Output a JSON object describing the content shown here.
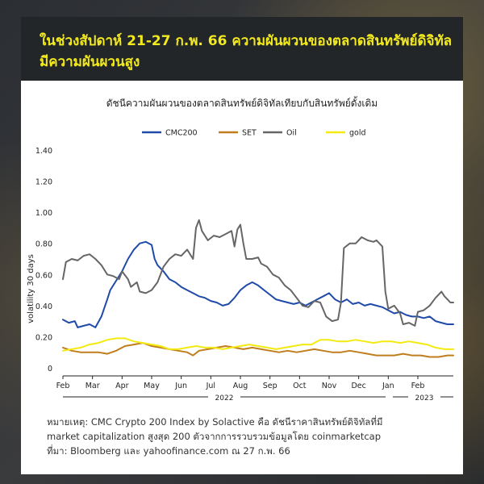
{
  "header": {
    "title_line1": "ในช่วงสัปดาห์ 21-27 ก.พ. 66 ความผันผวนของตลาดสินทรัพย์ดิจิทัล",
    "title_line2": "มีความผันผวนสูง"
  },
  "notes": {
    "line1": "หมายเหตุ: CMC Crypto 200 Index by Solactive คือ ดัชนีราคาสินทรัพย์ดิจิทัลที่มี",
    "line2": "market capitalization สูงสุด 200 ตัวจากการรวบรวมข้อมูลโดย coinmarketcap",
    "line3": "ที่มา: Bloomberg และ yahoofinance.com ณ 27 ก.พ. 66"
  },
  "chart_data": {
    "type": "line",
    "title": "ดัชนีความผันผวนของตลาดสินทรัพย์ดิจิทัลเทียบกับสินทรัพย์ดั้งเดิม",
    "ylabel": "volatility 30 days",
    "xlabel": "",
    "ylim": [
      0,
      1.4
    ],
    "xlim": [
      0,
      13.2
    ],
    "y_ticks": [
      "0",
      "0.20",
      "0.40",
      "0.60",
      "0.80",
      "1.00",
      "1.20",
      "1.40"
    ],
    "x_ticks": [
      "Feb",
      "Mar",
      "Apr",
      "May",
      "Jun",
      "Jul",
      "Aug",
      "Sep",
      "Oct",
      "Nov",
      "Dec",
      "Jan",
      "Feb"
    ],
    "year_labels": [
      "2022",
      "2023"
    ],
    "grid": false,
    "legend_position": "top",
    "series": [
      {
        "name": "CMC200",
        "color": "#1f4aa8",
        "points": [
          [
            0,
            0.31
          ],
          [
            0.2,
            0.29
          ],
          [
            0.4,
            0.3
          ],
          [
            0.5,
            0.26
          ],
          [
            0.7,
            0.27
          ],
          [
            0.9,
            0.28
          ],
          [
            1.1,
            0.26
          ],
          [
            1.3,
            0.33
          ],
          [
            1.5,
            0.44
          ],
          [
            1.6,
            0.5
          ],
          [
            1.8,
            0.56
          ],
          [
            2.0,
            0.62
          ],
          [
            2.2,
            0.7
          ],
          [
            2.4,
            0.76
          ],
          [
            2.6,
            0.8
          ],
          [
            2.8,
            0.81
          ],
          [
            3.0,
            0.79
          ],
          [
            3.1,
            0.7
          ],
          [
            3.2,
            0.66
          ],
          [
            3.4,
            0.62
          ],
          [
            3.6,
            0.57
          ],
          [
            3.8,
            0.55
          ],
          [
            4.0,
            0.52
          ],
          [
            4.2,
            0.5
          ],
          [
            4.4,
            0.48
          ],
          [
            4.6,
            0.46
          ],
          [
            4.8,
            0.45
          ],
          [
            5.0,
            0.43
          ],
          [
            5.2,
            0.42
          ],
          [
            5.4,
            0.4
          ],
          [
            5.6,
            0.41
          ],
          [
            5.8,
            0.45
          ],
          [
            6.0,
            0.5
          ],
          [
            6.2,
            0.53
          ],
          [
            6.4,
            0.55
          ],
          [
            6.6,
            0.53
          ],
          [
            6.8,
            0.5
          ],
          [
            7.0,
            0.47
          ],
          [
            7.2,
            0.44
          ],
          [
            7.4,
            0.43
          ],
          [
            7.6,
            0.42
          ],
          [
            7.8,
            0.41
          ],
          [
            8.0,
            0.42
          ],
          [
            8.2,
            0.4
          ],
          [
            8.4,
            0.42
          ],
          [
            8.6,
            0.44
          ],
          [
            8.8,
            0.46
          ],
          [
            9.0,
            0.48
          ],
          [
            9.2,
            0.44
          ],
          [
            9.4,
            0.42
          ],
          [
            9.6,
            0.44
          ],
          [
            9.8,
            0.41
          ],
          [
            10.0,
            0.42
          ],
          [
            10.2,
            0.4
          ],
          [
            10.4,
            0.41
          ],
          [
            10.6,
            0.4
          ],
          [
            10.8,
            0.39
          ],
          [
            11.0,
            0.37
          ],
          [
            11.2,
            0.35
          ],
          [
            11.4,
            0.36
          ],
          [
            11.6,
            0.34
          ],
          [
            11.8,
            0.33
          ],
          [
            12.0,
            0.33
          ],
          [
            12.2,
            0.32
          ],
          [
            12.4,
            0.33
          ],
          [
            12.6,
            0.3
          ],
          [
            12.8,
            0.29
          ],
          [
            13.0,
            0.28
          ],
          [
            13.2,
            0.28
          ]
        ]
      },
      {
        "name": "SET",
        "color": "#c07d1e",
        "points": [
          [
            0,
            0.13
          ],
          [
            0.3,
            0.11
          ],
          [
            0.6,
            0.1
          ],
          [
            0.9,
            0.1
          ],
          [
            1.2,
            0.1
          ],
          [
            1.5,
            0.09
          ],
          [
            1.8,
            0.11
          ],
          [
            2.1,
            0.14
          ],
          [
            2.4,
            0.15
          ],
          [
            2.7,
            0.16
          ],
          [
            3.0,
            0.14
          ],
          [
            3.3,
            0.13
          ],
          [
            3.6,
            0.12
          ],
          [
            3.9,
            0.11
          ],
          [
            4.2,
            0.1
          ],
          [
            4.4,
            0.08
          ],
          [
            4.6,
            0.11
          ],
          [
            4.9,
            0.12
          ],
          [
            5.2,
            0.13
          ],
          [
            5.5,
            0.14
          ],
          [
            5.8,
            0.13
          ],
          [
            6.1,
            0.12
          ],
          [
            6.4,
            0.13
          ],
          [
            6.7,
            0.12
          ],
          [
            7.0,
            0.11
          ],
          [
            7.3,
            0.1
          ],
          [
            7.6,
            0.11
          ],
          [
            7.9,
            0.1
          ],
          [
            8.2,
            0.11
          ],
          [
            8.5,
            0.12
          ],
          [
            8.8,
            0.11
          ],
          [
            9.1,
            0.1
          ],
          [
            9.4,
            0.1
          ],
          [
            9.7,
            0.11
          ],
          [
            10.0,
            0.1
          ],
          [
            10.3,
            0.09
          ],
          [
            10.6,
            0.08
          ],
          [
            10.9,
            0.08
          ],
          [
            11.2,
            0.08
          ],
          [
            11.5,
            0.09
          ],
          [
            11.8,
            0.08
          ],
          [
            12.1,
            0.08
          ],
          [
            12.4,
            0.07
          ],
          [
            12.7,
            0.07
          ],
          [
            13.0,
            0.08
          ],
          [
            13.2,
            0.08
          ]
        ]
      },
      {
        "name": "Oil",
        "color": "#666666",
        "points": [
          [
            0,
            0.57
          ],
          [
            0.1,
            0.68
          ],
          [
            0.3,
            0.7
          ],
          [
            0.5,
            0.69
          ],
          [
            0.7,
            0.72
          ],
          [
            0.9,
            0.73
          ],
          [
            1.1,
            0.7
          ],
          [
            1.3,
            0.66
          ],
          [
            1.5,
            0.6
          ],
          [
            1.7,
            0.59
          ],
          [
            1.9,
            0.57
          ],
          [
            2.0,
            0.62
          ],
          [
            2.2,
            0.57
          ],
          [
            2.3,
            0.52
          ],
          [
            2.5,
            0.55
          ],
          [
            2.6,
            0.49
          ],
          [
            2.8,
            0.48
          ],
          [
            3.0,
            0.5
          ],
          [
            3.2,
            0.55
          ],
          [
            3.4,
            0.65
          ],
          [
            3.6,
            0.7
          ],
          [
            3.8,
            0.73
          ],
          [
            4.0,
            0.72
          ],
          [
            4.2,
            0.76
          ],
          [
            4.4,
            0.7
          ],
          [
            4.5,
            0.9
          ],
          [
            4.6,
            0.95
          ],
          [
            4.7,
            0.88
          ],
          [
            4.9,
            0.82
          ],
          [
            5.1,
            0.85
          ],
          [
            5.3,
            0.84
          ],
          [
            5.5,
            0.86
          ],
          [
            5.7,
            0.88
          ],
          [
            5.8,
            0.78
          ],
          [
            5.9,
            0.89
          ],
          [
            6.0,
            0.92
          ],
          [
            6.1,
            0.8
          ],
          [
            6.2,
            0.7
          ],
          [
            6.4,
            0.7
          ],
          [
            6.6,
            0.71
          ],
          [
            6.7,
            0.67
          ],
          [
            6.9,
            0.65
          ],
          [
            7.1,
            0.6
          ],
          [
            7.3,
            0.58
          ],
          [
            7.5,
            0.53
          ],
          [
            7.7,
            0.5
          ],
          [
            7.9,
            0.45
          ],
          [
            8.1,
            0.4
          ],
          [
            8.3,
            0.39
          ],
          [
            8.5,
            0.43
          ],
          [
            8.7,
            0.42
          ],
          [
            8.9,
            0.33
          ],
          [
            9.1,
            0.3
          ],
          [
            9.3,
            0.31
          ],
          [
            9.4,
            0.42
          ],
          [
            9.5,
            0.77
          ],
          [
            9.7,
            0.8
          ],
          [
            9.9,
            0.8
          ],
          [
            10.1,
            0.84
          ],
          [
            10.3,
            0.82
          ],
          [
            10.5,
            0.81
          ],
          [
            10.6,
            0.82
          ],
          [
            10.8,
            0.78
          ],
          [
            10.9,
            0.49
          ],
          [
            11.0,
            0.38
          ],
          [
            11.2,
            0.4
          ],
          [
            11.4,
            0.35
          ],
          [
            11.5,
            0.28
          ],
          [
            11.7,
            0.29
          ],
          [
            11.9,
            0.27
          ],
          [
            12.0,
            0.36
          ],
          [
            12.2,
            0.37
          ],
          [
            12.4,
            0.4
          ],
          [
            12.6,
            0.45
          ],
          [
            12.8,
            0.49
          ],
          [
            12.9,
            0.46
          ],
          [
            13.0,
            0.44
          ],
          [
            13.1,
            0.42
          ],
          [
            13.2,
            0.42
          ]
        ]
      },
      {
        "name": "gold",
        "color": "#f2ea10",
        "points": [
          [
            0,
            0.11
          ],
          [
            0.3,
            0.12
          ],
          [
            0.6,
            0.13
          ],
          [
            0.9,
            0.15
          ],
          [
            1.2,
            0.16
          ],
          [
            1.5,
            0.18
          ],
          [
            1.8,
            0.19
          ],
          [
            2.1,
            0.19
          ],
          [
            2.4,
            0.17
          ],
          [
            2.7,
            0.16
          ],
          [
            3.0,
            0.15
          ],
          [
            3.3,
            0.14
          ],
          [
            3.6,
            0.12
          ],
          [
            3.9,
            0.12
          ],
          [
            4.2,
            0.13
          ],
          [
            4.5,
            0.14
          ],
          [
            4.8,
            0.13
          ],
          [
            5.1,
            0.13
          ],
          [
            5.4,
            0.12
          ],
          [
            5.7,
            0.13
          ],
          [
            6.0,
            0.14
          ],
          [
            6.3,
            0.15
          ],
          [
            6.6,
            0.14
          ],
          [
            6.9,
            0.13
          ],
          [
            7.2,
            0.12
          ],
          [
            7.5,
            0.13
          ],
          [
            7.8,
            0.14
          ],
          [
            8.1,
            0.15
          ],
          [
            8.4,
            0.15
          ],
          [
            8.7,
            0.18
          ],
          [
            9.0,
            0.18
          ],
          [
            9.3,
            0.17
          ],
          [
            9.6,
            0.17
          ],
          [
            9.9,
            0.18
          ],
          [
            10.2,
            0.17
          ],
          [
            10.5,
            0.16
          ],
          [
            10.8,
            0.17
          ],
          [
            11.1,
            0.17
          ],
          [
            11.4,
            0.16
          ],
          [
            11.7,
            0.17
          ],
          [
            12.0,
            0.16
          ],
          [
            12.3,
            0.15
          ],
          [
            12.6,
            0.13
          ],
          [
            12.9,
            0.12
          ],
          [
            13.2,
            0.12
          ]
        ]
      }
    ]
  }
}
